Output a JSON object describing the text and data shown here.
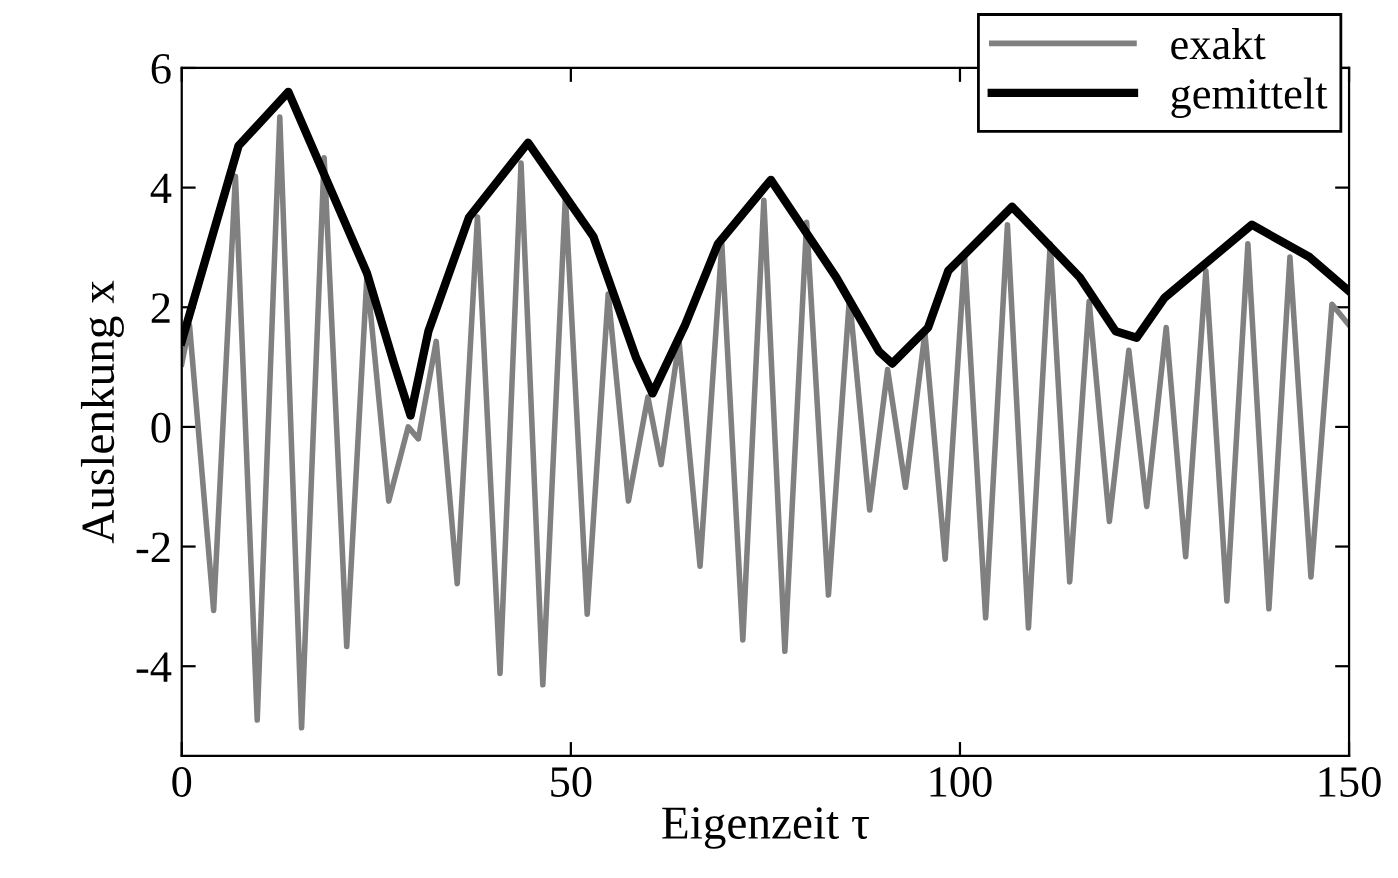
{
  "chart_data": {
    "type": "line",
    "xlabel": "Eigenzeit τ",
    "ylabel": "Auslenkung x",
    "xlim": [
      0,
      150
    ],
    "xticks": [
      0,
      50,
      100,
      150
    ],
    "ylim": [
      -5.5,
      6
    ],
    "yticks": [
      -4,
      -2,
      0,
      2,
      4,
      6
    ],
    "grid": false,
    "legend": "top right",
    "marker": "none",
    "line_style": "solid",
    "series": [
      {
        "name": "exakt",
        "color": "#808080",
        "x": [
          0,
          1,
          4.1,
          6.9,
          9.7,
          12.6,
          15.4,
          18.3,
          21.2,
          23.8,
          26.6,
          29.1,
          30.4,
          32.7,
          35.4,
          38,
          40.9,
          43.6,
          46.4,
          49.3,
          52.1,
          54.8,
          57.4,
          59.9,
          61.6,
          63.9,
          66.6,
          69.4,
          72.1,
          74.8,
          77.5,
          80.3,
          83.1,
          85.8,
          88.4,
          90.7,
          93,
          95.5,
          98.1,
          100.6,
          103.3,
          106.1,
          108.8,
          111.6,
          114.1,
          116.6,
          119.2,
          121.7,
          124,
          126.5,
          129,
          131.6,
          134.3,
          137,
          139.7,
          142.4,
          145.1,
          147.8,
          150
        ],
        "values": [
          1.05,
          1.7,
          -3.07,
          4.19,
          -4.9,
          5.18,
          -5.03,
          4.5,
          -3.67,
          2.53,
          -1.24,
          0.0,
          -0.2,
          1.43,
          -2.62,
          3.51,
          -4.12,
          4.41,
          -4.31,
          3.85,
          -3.13,
          2.22,
          -1.24,
          0.5,
          -0.63,
          1.43,
          -2.33,
          3.06,
          -3.56,
          3.79,
          -3.75,
          3.42,
          -2.81,
          2.16,
          -1.39,
          0.96,
          -1.01,
          1.57,
          -2.21,
          2.84,
          -3.19,
          3.38,
          -3.36,
          3.06,
          -2.59,
          2.1,
          -1.58,
          1.28,
          -1.33,
          1.66,
          -2.17,
          2.61,
          -2.91,
          3.06,
          -3.04,
          2.84,
          -2.51,
          2.05,
          1.7
        ]
      },
      {
        "name": "gemittelt",
        "color": "#000000",
        "x": [
          0,
          7.3,
          13.7,
          23.8,
          27.3,
          29.4,
          31.7,
          36.9,
          44.5,
          52.9,
          58.4,
          60.5,
          64.7,
          68.9,
          75.7,
          84.1,
          89.6,
          91.3,
          95.9,
          98.5,
          106.7,
          115.4,
          120,
          122.7,
          126.3,
          137.5,
          144.9,
          150
        ],
        "values": [
          1.43,
          4.7,
          5.6,
          2.57,
          1.05,
          0.19,
          1.6,
          3.5,
          4.75,
          3.18,
          1.15,
          0.56,
          1.71,
          3.06,
          4.13,
          2.5,
          1.26,
          1.06,
          1.66,
          2.61,
          3.68,
          2.5,
          1.6,
          1.49,
          2.16,
          3.38,
          2.84,
          2.27
        ]
      }
    ]
  }
}
